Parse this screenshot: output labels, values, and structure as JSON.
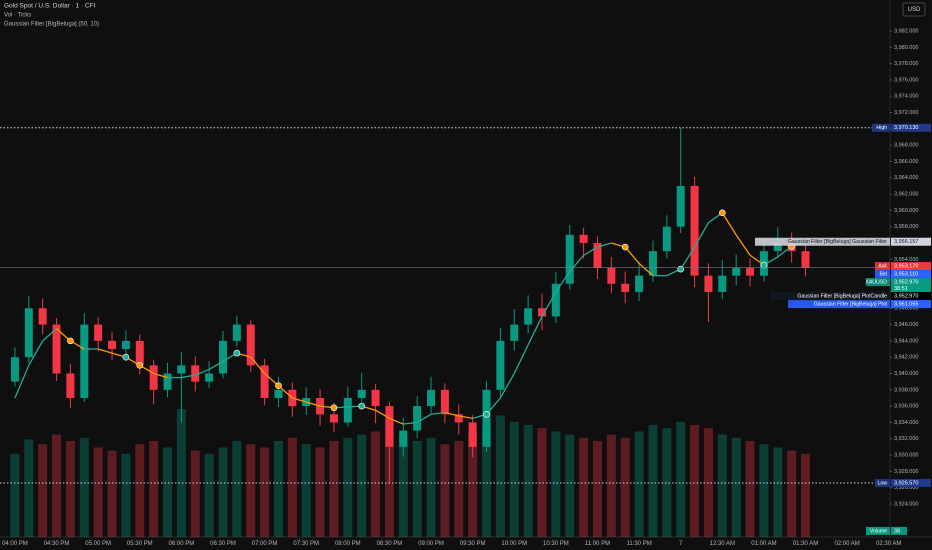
{
  "chart_data": {
    "type": "candlestick",
    "title": "Gold Spot / U.S. Dollar · 1 · CFI",
    "indicators": [
      "Vol · Ticks",
      "Gaussian Filter [BigBeluga] (50, 10)"
    ],
    "currency": "USD",
    "up_color": "#089981",
    "down_color": "#f23645",
    "categories": [
      "04:00 PM",
      null,
      null,
      "04:30 PM",
      null,
      null,
      "05:00 PM",
      null,
      null,
      "05:30 PM",
      null,
      null,
      "06:00 PM",
      null,
      null,
      "06:30 PM",
      null,
      null,
      "07:00 PM",
      null,
      null,
      "07:30 PM",
      null,
      null,
      "08:00 PM",
      null,
      null,
      "08:30 PM",
      null,
      null,
      "09:00 PM",
      null,
      null,
      "09:30 PM",
      null,
      null,
      "10:00 PM",
      null,
      null,
      "10:30 PM",
      null,
      null,
      "11:00 PM",
      null,
      null,
      "11:30 PM",
      null,
      null,
      "7",
      null,
      null,
      "12:30 AM",
      null,
      null,
      "01:00 AM",
      null,
      null,
      "01:30 AM",
      null,
      null,
      "02:00 AM",
      null,
      null,
      "02:30 AM"
    ],
    "open": [
      3939,
      3942,
      3948,
      3946,
      3940,
      3937,
      3946,
      3944,
      3943,
      3944,
      3941,
      3938,
      3940,
      3941,
      3939,
      3940,
      3944,
      3946,
      3941,
      3937,
      3938,
      3936,
      3937,
      3935,
      3934,
      3937,
      3938,
      3936,
      3931,
      3933,
      3936,
      3938,
      3935,
      3934,
      3931,
      3938,
      3944,
      3946,
      3948,
      3947,
      3951,
      3957,
      3956,
      3953,
      3951,
      3950,
      3952,
      3955,
      3958,
      3963,
      3952,
      3950,
      3952,
      3953,
      3952,
      3955,
      3956,
      3955,
      null,
      null,
      null,
      null,
      null,
      null
    ],
    "high": [
      3943.2,
      3949.5,
      3949.2,
      3946.8,
      3941.2,
      3947.4,
      3946.9,
      3945.1,
      3945.3,
      3944.8,
      3941.7,
      3941.3,
      3942.6,
      3942.1,
      3941.5,
      3945.2,
      3947.1,
      3946.5,
      3941.8,
      3939.6,
      3938.9,
      3938.3,
      3938.1,
      3936.4,
      3938.4,
      3940.1,
      3938.7,
      3936.5,
      3934.6,
      3937.2,
      3939.6,
      3938.8,
      3936.2,
      3934.9,
      3939.1,
      3945.6,
      3947.9,
      3949.6,
      3949.8,
      3952.4,
      3958.2,
      3957.9,
      3956.8,
      3954.3,
      3952.5,
      3953.7,
      3956.3,
      3959.4,
      3970.13,
      3964.1,
      3953.5,
      3953.9,
      3954.6,
      3954.1,
      3956.5,
      3958.0,
      3957.3,
      3955.8,
      null,
      null,
      null,
      null,
      null,
      null
    ],
    "low": [
      3938.4,
      3941.3,
      3944.8,
      3939.1,
      3935.8,
      3936.5,
      3942.7,
      3941.6,
      3942.2,
      3939.9,
      3936.2,
      3937.1,
      3934.0,
      3937.8,
      3938.2,
      3939.4,
      3943.3,
      3940.2,
      3936.1,
      3935.9,
      3934.7,
      3934.9,
      3933.6,
      3932.8,
      3933.5,
      3936.2,
      3933.9,
      3926.57,
      3929.8,
      3932.1,
      3935.1,
      3933.9,
      3932.5,
      3929.7,
      3930.4,
      3937.2,
      3942.8,
      3944.9,
      3945.3,
      3946.2,
      3950.3,
      3954.1,
      3951.6,
      3949.8,
      3948.6,
      3948.9,
      3951.2,
      3954.1,
      3957.2,
      3950.6,
      3946.3,
      3949.1,
      3950.8,
      3950.7,
      3951.3,
      3954.2,
      3953.6,
      3951.9,
      null,
      null,
      null,
      null,
      null,
      null
    ],
    "close": [
      3942,
      3948,
      3946,
      3940,
      3937,
      3946,
      3944,
      3943,
      3944,
      3941,
      3938,
      3940,
      3941,
      3939,
      3940,
      3944,
      3946,
      3941,
      3937,
      3938,
      3936,
      3937,
      3935,
      3934,
      3937,
      3938,
      3936,
      3931,
      3933,
      3936,
      3938,
      3935,
      3934,
      3931,
      3938,
      3944,
      3946,
      3948,
      3947,
      3951,
      3957,
      3956,
      3953,
      3951,
      3950,
      3952,
      3955,
      3958,
      3963,
      3952,
      3950,
      3952,
      3953,
      3952,
      3955,
      3956,
      3955,
      3952.97,
      null,
      null,
      null,
      null,
      null,
      null
    ],
    "volume": [
      520,
      610,
      580,
      640,
      600,
      620,
      560,
      540,
      520,
      580,
      600,
      560,
      800,
      540,
      520,
      560,
      600,
      580,
      560,
      600,
      620,
      580,
      560,
      600,
      620,
      640,
      660,
      720,
      640,
      600,
      620,
      580,
      600,
      660,
      700,
      760,
      720,
      700,
      680,
      660,
      640,
      620,
      600,
      640,
      620,
      660,
      700,
      680,
      720,
      700,
      680,
      640,
      620,
      600,
      580,
      560,
      540,
      520,
      null,
      null,
      null,
      null,
      null,
      null
    ],
    "volume_ylim": [
      0,
      1000
    ],
    "volume_tag": {
      "name": "Volume",
      "value": 38
    },
    "filter": [
      3937,
      3941,
      3944,
      3945.5,
      3944,
      3943,
      3943,
      3942.5,
      3942,
      3941,
      3940,
      3939.5,
      3939.5,
      3939.8,
      3940.5,
      3941.5,
      3942.5,
      3942,
      3940,
      3938.5,
      3937,
      3936.5,
      3936,
      3935.8,
      3935.9,
      3936,
      3935.5,
      3934.5,
      3933.8,
      3934,
      3935,
      3935.2,
      3934.8,
      3934.5,
      3935,
      3937,
      3940,
      3943.5,
      3947,
      3950,
      3952.5,
      3954.5,
      3955.5,
      3956,
      3955.5,
      3953.5,
      3952,
      3952,
      3952.8,
      3955.5,
      3958.5,
      3959.7,
      3957,
      3954.5,
      3953.3,
      3954.3,
      3955.6,
      3956.16,
      null,
      null,
      null,
      null,
      null,
      null
    ],
    "filter_up_color": "#22ab94",
    "filter_down_color": "#ff9800",
    "enter_markers": [
      null,
      null,
      null,
      null,
      null,
      null,
      null,
      null,
      3942,
      null,
      null,
      null,
      null,
      null,
      null,
      null,
      3942.5,
      null,
      null,
      null,
      null,
      null,
      null,
      null,
      null,
      3936,
      null,
      null,
      null,
      null,
      null,
      null,
      null,
      null,
      3935,
      null,
      null,
      null,
      null,
      null,
      null,
      null,
      null,
      null,
      null,
      null,
      null,
      null,
      3952.8,
      null,
      null,
      null,
      null,
      null,
      3953.3,
      null,
      null,
      null,
      null,
      null,
      null,
      null,
      null,
      null
    ],
    "exit_markers": [
      null,
      null,
      null,
      null,
      3944,
      null,
      null,
      null,
      null,
      3941,
      null,
      null,
      null,
      null,
      null,
      null,
      null,
      null,
      null,
      3938.5,
      null,
      null,
      null,
      3935.8,
      null,
      null,
      null,
      null,
      null,
      null,
      null,
      null,
      null,
      null,
      null,
      null,
      null,
      null,
      null,
      null,
      null,
      null,
      null,
      null,
      3955.5,
      null,
      null,
      null,
      null,
      null,
      null,
      3959.7,
      null,
      null,
      null,
      null,
      3955.6,
      null,
      null,
      null,
      null,
      null,
      null,
      null
    ],
    "ylim": [
      3919.95,
      3985.8
    ],
    "yticks": [
      {
        "value": 3924,
        "label": "3,924.000"
      },
      {
        "value": 3926,
        "label": "3,926.000"
      },
      {
        "value": 3928,
        "label": "3,928.000"
      },
      {
        "value": 3930,
        "label": "3,930.000"
      },
      {
        "value": 3932,
        "label": "3,932.000"
      },
      {
        "value": 3934,
        "label": "3,934.000"
      },
      {
        "value": 3936,
        "label": "3,936.000"
      },
      {
        "value": 3938,
        "label": "3,938.000"
      },
      {
        "value": 3940,
        "label": "3,940.000"
      },
      {
        "value": 3942,
        "label": "3,942.000"
      },
      {
        "value": 3944,
        "label": "3,944.000"
      },
      {
        "value": 3946,
        "label": "3,946.000"
      },
      {
        "value": 3948,
        "label": "3,948.000"
      },
      {
        "value": 3950,
        "label": "3,950.000"
      },
      {
        "value": 3952,
        "label": "3,952.000"
      },
      {
        "value": 3954,
        "label": "3,954.000"
      },
      {
        "value": 3956,
        "label": "3,956.000"
      },
      {
        "value": 3958,
        "label": "3,958.000"
      },
      {
        "value": 3960,
        "label": "3,960.000"
      },
      {
        "value": 3962,
        "label": "3,962.000"
      },
      {
        "value": 3964,
        "label": "3,964.000"
      },
      {
        "value": 3966,
        "label": "3,966.000"
      },
      {
        "value": 3968,
        "label": "3,968.000"
      },
      {
        "value": 3970,
        "label": "3,970.000"
      },
      {
        "value": 3972,
        "label": "3,972.000"
      },
      {
        "value": 3974,
        "label": "3,974.000"
      },
      {
        "value": 3976,
        "label": "3,976.000"
      },
      {
        "value": 3978,
        "label": "3,978.000"
      },
      {
        "value": 3980,
        "label": "3,980.000"
      },
      {
        "value": 3982,
        "label": "3,982.000"
      }
    ],
    "price_tags": [
      {
        "name": "High",
        "value": 3970.13,
        "label": "3,970.130",
        "color": "#1e3a8a",
        "line": "dotted"
      },
      {
        "name": "Gaussian Filter [BigBeluga] Gaussian Filter",
        "value": 3956.157,
        "label": "3,956.157",
        "color": "#d1d4dc"
      },
      {
        "name": "Ask",
        "value": 3953.17,
        "label": "3,953.170",
        "color": "#f23645"
      },
      {
        "name": "Bid",
        "value": 3953.11,
        "label": "3,953.110",
        "color": "#2962ff"
      },
      {
        "name": "XAUUSD",
        "value": 3952.97,
        "label": "3,952.970",
        "color": "#089981",
        "countdown": "38:51",
        "line": "solid"
      },
      {
        "name": "Gaussian Filter [BigBeluga] PlotCandle",
        "value": 3952.97,
        "label": "3,952.970",
        "color": "#000000"
      },
      {
        "name": "Gaussian Filter [BigBeluga] Plot",
        "value": 3951.055,
        "label": "3,951.055",
        "color": "#2962ff"
      },
      {
        "name": "Low",
        "value": 3926.57,
        "label": "3,926.570",
        "color": "#1e3a8a",
        "line": "dotted"
      }
    ]
  }
}
